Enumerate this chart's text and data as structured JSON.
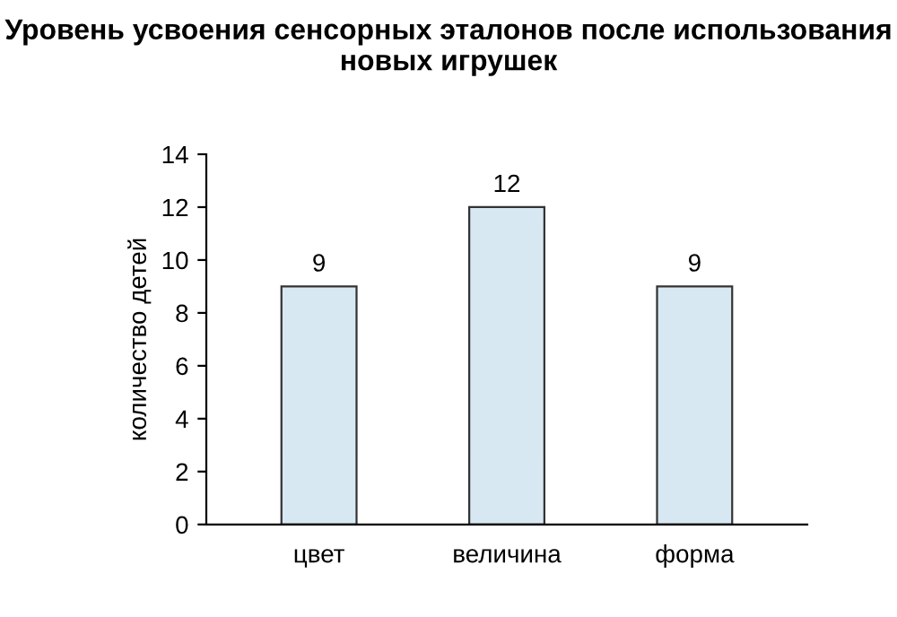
{
  "chart_data": {
    "type": "bar",
    "title": "Уровень усвоения сенсорных эталонов после использования\nновых игрушек",
    "ylabel": "количество детей",
    "categories": [
      "цвет",
      "величина",
      "форма"
    ],
    "values": [
      9,
      12,
      9
    ],
    "color": "#d8e8f2",
    "ylim": [
      0,
      14
    ],
    "yticks": [
      0,
      2,
      4,
      6,
      8,
      10,
      12,
      14
    ],
    "data_labels": true
  }
}
